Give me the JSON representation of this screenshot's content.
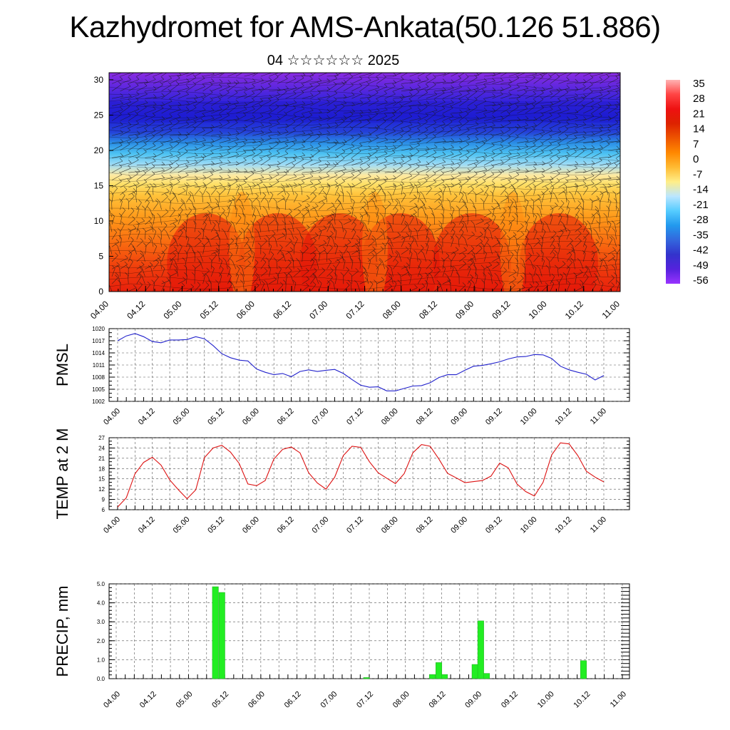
{
  "title": "Kazhydromet for AMS-Ankata(50.126 51.886)",
  "subtitle": "04 ☆☆☆☆☆☆ 2025",
  "chart_data": [
    {
      "type": "heatmap",
      "id": "cross-section",
      "y_ticks": [
        "0",
        "5",
        "10",
        "15",
        "20",
        "25",
        "30"
      ],
      "ylim": [
        0,
        31
      ],
      "x_tick_labels": [
        "04.00",
        "04.12",
        "05.00",
        "05.12",
        "06.00",
        "06.12",
        "07.00",
        "07.12",
        "08.00",
        "08.12",
        "09.00",
        "09.12",
        "10.00",
        "10.12",
        "11.00"
      ],
      "colorbar_labels": [
        "35",
        "28",
        "21",
        "14",
        "7",
        "0",
        "-7",
        "-14",
        "-21",
        "-28",
        "-35",
        "-42",
        "-49",
        "-56"
      ],
      "colorbar_colors": [
        "#ffb3b3",
        "#ff4444",
        "#ee1111",
        "#dd2200",
        "#ee5500",
        "#ff8800",
        "#ffbb33",
        "#ffee88",
        "#bbe6ff",
        "#55ccff",
        "#2299ee",
        "#3366dd",
        "#3333cc",
        "#5522dd",
        "#9933ff"
      ],
      "colors": {
        "hot": "#e61a0a",
        "warm": "#ff9a1a",
        "mild": "#ffe066",
        "cool": "#4cc2f2",
        "cold": "#2020d8",
        "top": "#8a2be2"
      }
    },
    {
      "type": "line",
      "id": "pmsl",
      "ylabel": "PMSL",
      "ylim": [
        1002,
        1020
      ],
      "y_ticks": [
        "1020",
        "1017",
        "1014",
        "1011",
        "1008",
        "1005",
        "1002"
      ],
      "x_tick_labels": [
        "04.00",
        "04.12",
        "05.00",
        "05.12",
        "06.00",
        "06.12",
        "07.00",
        "07.12",
        "08.00",
        "08.12",
        "09.00",
        "09.12",
        "10.00",
        "10.12",
        "11.00"
      ],
      "color": "#2222cc",
      "values": [
        1017.0,
        1018.2,
        1018.8,
        1018.0,
        1016.8,
        1016.5,
        1017.2,
        1017.2,
        1017.3,
        1018.0,
        1017.5,
        1015.8,
        1013.8,
        1012.8,
        1012.2,
        1012.0,
        1010.0,
        1009.2,
        1008.6,
        1008.9,
        1008.1,
        1009.4,
        1009.8,
        1009.4,
        1009.7,
        1009.9,
        1008.9,
        1007.4,
        1006.0,
        1005.5,
        1005.6,
        1004.6,
        1004.6,
        1005.2,
        1005.8,
        1005.9,
        1006.6,
        1007.9,
        1008.6,
        1008.6,
        1009.7,
        1010.7,
        1010.9,
        1011.3,
        1011.8,
        1012.5,
        1013.0,
        1013.1,
        1013.6,
        1013.5,
        1012.6,
        1010.7,
        1009.8,
        1009.2,
        1008.7,
        1007.3,
        1008.4
      ]
    },
    {
      "type": "line",
      "id": "temp",
      "ylabel": "TEMP at 2 M",
      "ylim": [
        6,
        27
      ],
      "y_ticks": [
        "27",
        "24",
        "21",
        "18",
        "15",
        "12",
        "9",
        "6"
      ],
      "x_tick_labels": [
        "04.00",
        "04.12",
        "05.00",
        "05.12",
        "06.00",
        "06.12",
        "07.00",
        "07.12",
        "08.00",
        "08.12",
        "09.00",
        "09.12",
        "10.00",
        "10.12",
        "11.00"
      ],
      "color": "#dd1111",
      "values": [
        6.8,
        9.5,
        16.5,
        19.8,
        21.3,
        19.0,
        14.7,
        11.8,
        9.2,
        11.8,
        21.2,
        24.0,
        24.8,
        22.8,
        19.5,
        13.5,
        13.0,
        14.5,
        20.8,
        23.6,
        24.3,
        22.6,
        16.8,
        13.8,
        12.0,
        15.5,
        21.8,
        24.5,
        24.2,
        20.0,
        16.8,
        15.2,
        13.6,
        16.5,
        22.6,
        25.0,
        24.5,
        20.8,
        16.6,
        15.3,
        13.9,
        14.2,
        14.5,
        15.8,
        19.6,
        18.2,
        13.5,
        11.3,
        10.0,
        14.0,
        22.0,
        25.5,
        25.2,
        21.8,
        17.2,
        15.5,
        14.1
      ]
    },
    {
      "type": "bar",
      "id": "precip",
      "ylabel": "PRECIP, mm",
      "ylim": [
        0,
        5
      ],
      "y_ticks": [
        "5.0",
        "4.0",
        "3.0",
        "2.0",
        "1.0",
        "0.0"
      ],
      "x_tick_labels": [
        "04.00",
        "04.12",
        "05.00",
        "05.12",
        "06.00",
        "06.12",
        "07.00",
        "07.12",
        "08.00",
        "08.12",
        "09.00",
        "09.12",
        "10.00",
        "10.12",
        "11.00"
      ],
      "color": "#22ee22",
      "bars": [
        {
          "t": 1.33,
          "value": 4.85
        },
        {
          "t": 1.42,
          "value": 4.55
        },
        {
          "t": 3.42,
          "value": 0.06
        },
        {
          "t": 4.33,
          "value": 0.22
        },
        {
          "t": 4.42,
          "value": 0.85
        },
        {
          "t": 4.5,
          "value": 0.22
        },
        {
          "t": 4.92,
          "value": 0.75
        },
        {
          "t": 5.0,
          "value": 3.05
        },
        {
          "t": 5.08,
          "value": 0.28
        },
        {
          "t": 6.42,
          "value": 0.95
        }
      ]
    }
  ]
}
